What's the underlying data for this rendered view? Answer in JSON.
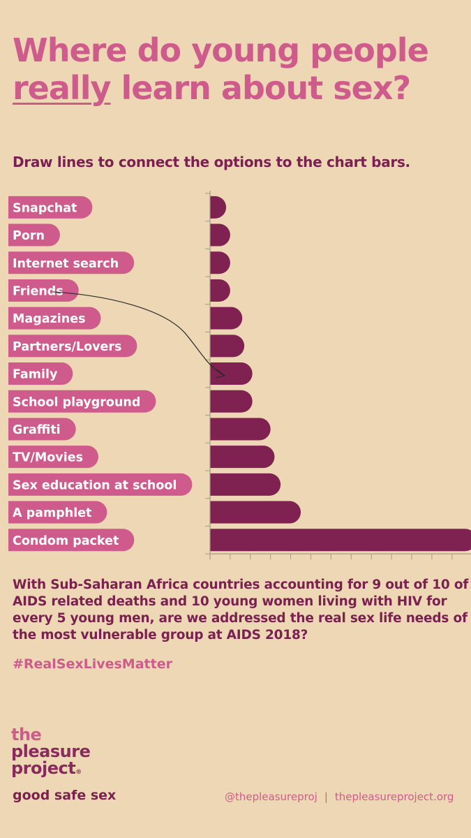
{
  "title": {
    "line1": "Where do young people",
    "line2_emph": "really",
    "line2_rest": " learn about sex?"
  },
  "instruction": "Draw lines to connect the options to the chart bars.",
  "chart_data": {
    "type": "bar",
    "orientation": "horizontal",
    "categories": [
      "Snapchat",
      "Porn",
      "Internet search",
      "Friends",
      "Magazines",
      "Partners/Lovers",
      "Family",
      "School playground",
      "Graffiti",
      "TV/Movies",
      "Sex education at school",
      "A pamphlet",
      "Condom packet"
    ],
    "values": [
      0.8,
      1.0,
      1.0,
      1.0,
      1.6,
      1.7,
      2.1,
      2.1,
      3.0,
      3.2,
      3.5,
      4.5,
      13.2
    ],
    "xlim": [
      0,
      13
    ],
    "x_ticks": 13,
    "show_tick_labels": false,
    "annotation": {
      "from": "Friends",
      "to": "Family",
      "style": "hand-drawn arrow"
    },
    "colors": {
      "label_pill": "#cf5b8d",
      "bar": "#7f2251",
      "axis": "#a89a86"
    }
  },
  "body_text": "With Sub-Saharan Africa countries accounting for 9 out of 10 of AIDS related deaths and 10 young women living with HIV for every 5 young men, are we addressed the real sex life needs of the most vulnerable group at AIDS 2018?",
  "hashtag": "#RealSexLivesMatter",
  "logo": {
    "line1": "the",
    "line2": "pleasure",
    "line3": "project",
    "mark": "®"
  },
  "tagline": "good safe sex",
  "footer": {
    "handle": "@thepleasureproj",
    "separator": "|",
    "website": "thepleasureproject.org"
  }
}
